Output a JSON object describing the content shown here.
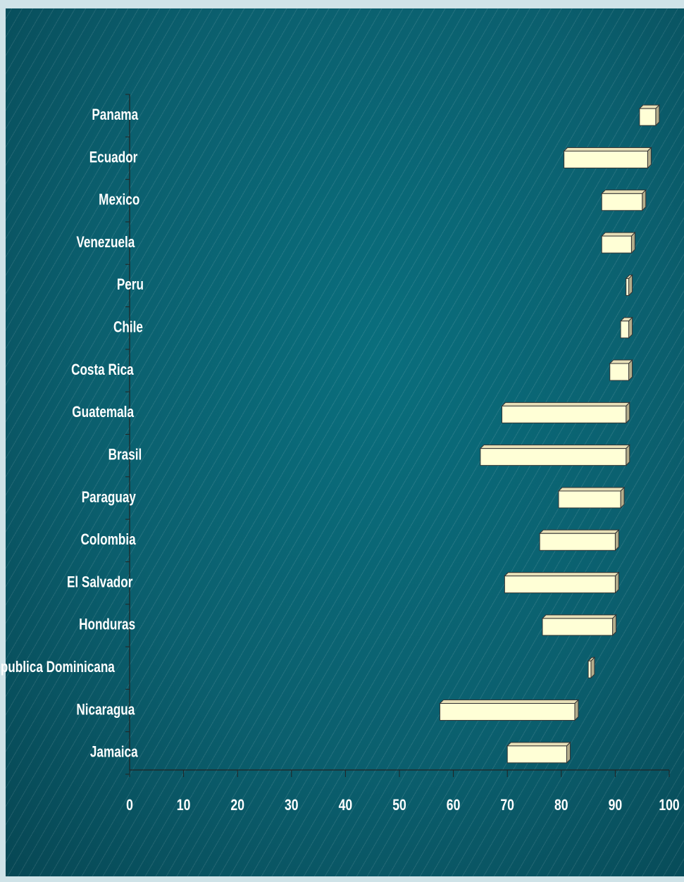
{
  "chart_data": {
    "type": "bar",
    "orientation": "horizontal",
    "style": "floating-range-3d",
    "title": "",
    "xlabel": "",
    "ylabel": "",
    "xlim": [
      0,
      100
    ],
    "ticks": [
      "0",
      "10",
      "20",
      "30",
      "40",
      "50",
      "60",
      "70",
      "80",
      "90",
      "100"
    ],
    "categories": [
      "Panama",
      "Ecuador",
      "Mexico",
      "Venezuela",
      "Peru",
      "Chile",
      "Costa Rica",
      "Guatemala",
      "Brasil",
      "Paraguay",
      "Colombia",
      "El Salvador",
      "Honduras",
      "Republica Dominicana",
      "Nicaragua",
      "Jamaica"
    ],
    "series": [
      {
        "values": [
          [
            94.5,
            97.5
          ],
          [
            80.5,
            96
          ],
          [
            87.5,
            95
          ],
          [
            87.5,
            93
          ],
          [
            92,
            92.5
          ],
          [
            91,
            92.5
          ],
          [
            89,
            92.5
          ],
          [
            69,
            92
          ],
          [
            65,
            92
          ],
          [
            79.5,
            91
          ],
          [
            76,
            90
          ],
          [
            69.5,
            90
          ],
          [
            76.5,
            89.5
          ],
          [
            85,
            85.5
          ],
          [
            57.5,
            82.5
          ],
          [
            70,
            81
          ]
        ]
      }
    ],
    "grid": false,
    "legend": "none",
    "colors": {
      "bar_face": "#ffffd6",
      "bar_top": "#e8e0b8",
      "bar_side": "#b5ae8c",
      "text": "#ffffff",
      "background": "#0a6272",
      "page": "#cfe3e8"
    }
  }
}
